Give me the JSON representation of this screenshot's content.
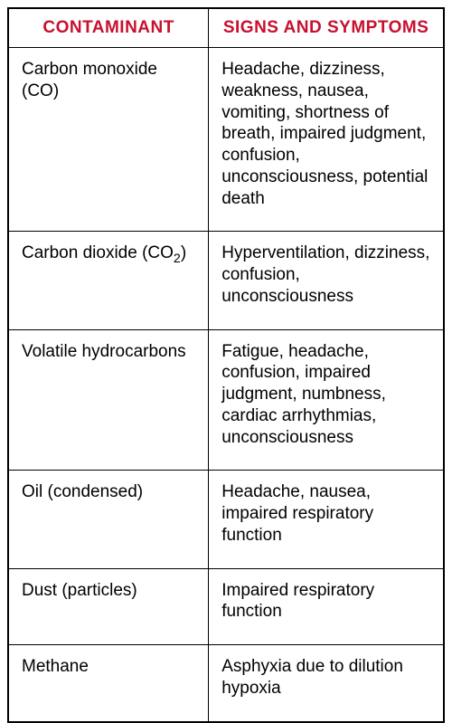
{
  "table": {
    "header_color": "#c8102e",
    "columns": [
      "CONTAMINANT",
      "SIGNS AND SYMPTOMS"
    ],
    "rows": [
      {
        "contaminant": "Carbon monoxide (CO)",
        "symptoms": "Headache, dizziness, weakness, nausea, vomiting, shortness of breath, impaired judgment, confusion, unconsciousness, potential death"
      },
      {
        "contaminant": "Carbon dioxide (CO",
        "contaminant_sub": "2",
        "contaminant_suffix": ")",
        "symptoms": "Hyperventilation, dizziness, confusion, unconsciousness"
      },
      {
        "contaminant": "Volatile hydrocarbons",
        "symptoms": "Fatigue, headache, confusion, impaired judgment, numb­ness, cardiac arrhythmias, unconsciousness"
      },
      {
        "contaminant": "Oil (condensed)",
        "symptoms": "Headache, nausea, impaired respiratory function"
      },
      {
        "contaminant": "Dust (particles)",
        "symptoms": "Impaired respiratory function"
      },
      {
        "contaminant": "Methane",
        "symptoms": "Asphyxia due to dilution hypoxia"
      }
    ]
  }
}
